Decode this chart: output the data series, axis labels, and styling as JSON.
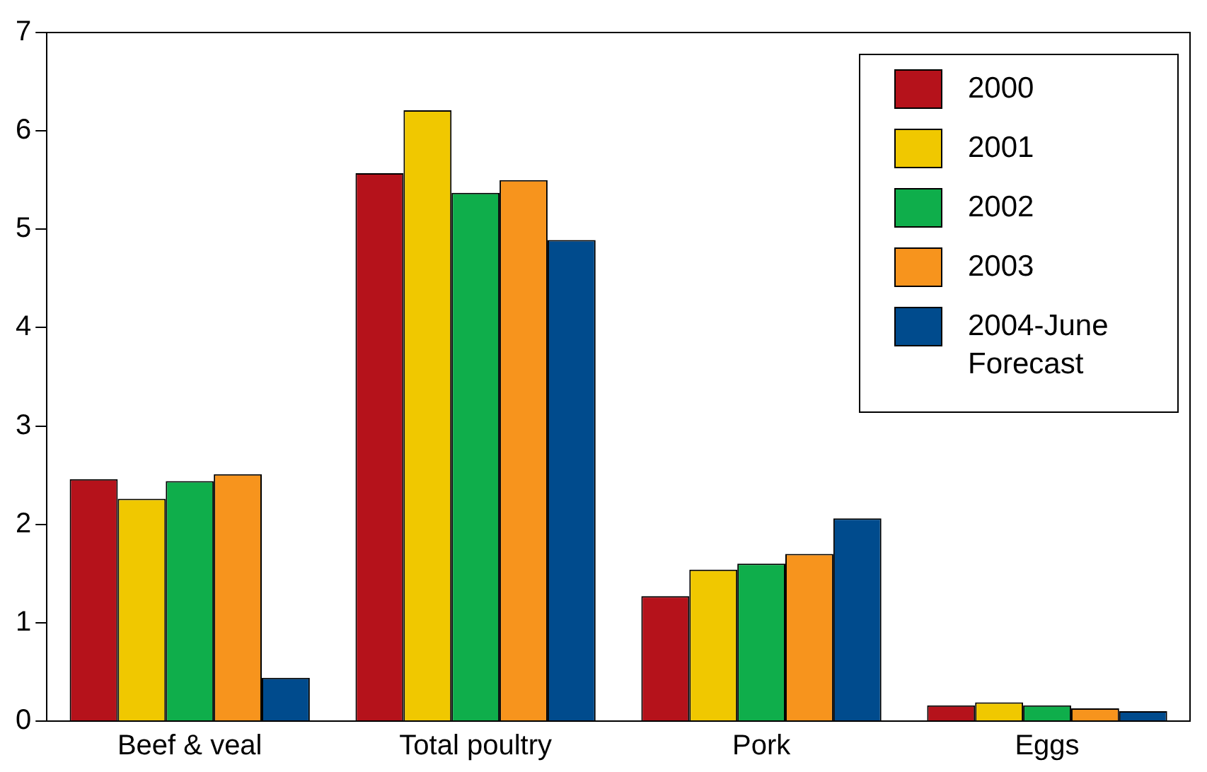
{
  "chart_data": {
    "type": "bar",
    "categories": [
      "Beef & veal",
      "Total poultry",
      "Pork",
      "Eggs"
    ],
    "series": [
      {
        "name": "2000",
        "color": "#b5121b",
        "values": [
          2.46,
          5.57,
          1.27,
          0.16
        ]
      },
      {
        "name": "2001",
        "color": "#f0c800",
        "values": [
          2.26,
          6.21,
          1.54,
          0.19
        ]
      },
      {
        "name": "2002",
        "color": "#0fae4b",
        "values": [
          2.44,
          5.37,
          1.6,
          0.16
        ]
      },
      {
        "name": "2003",
        "color": "#f7941d",
        "values": [
          2.51,
          5.5,
          1.7,
          0.13
        ]
      },
      {
        "name": "2004-June Forecast",
        "color": "#004b8d",
        "values": [
          0.44,
          4.89,
          2.06,
          0.1
        ]
      }
    ],
    "ylim": [
      0,
      7
    ],
    "yticks": [
      0,
      1,
      2,
      3,
      4,
      5,
      6,
      7
    ],
    "grid": false,
    "legend": "top right"
  }
}
